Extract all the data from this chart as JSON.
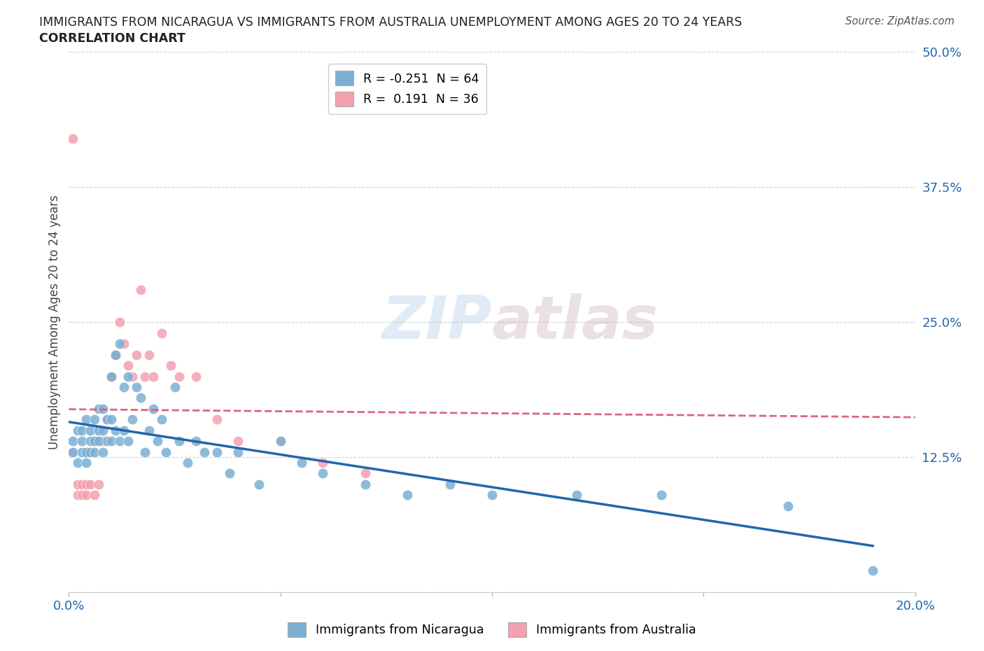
{
  "title_line1": "IMMIGRANTS FROM NICARAGUA VS IMMIGRANTS FROM AUSTRALIA UNEMPLOYMENT AMONG AGES 20 TO 24 YEARS",
  "title_line2": "CORRELATION CHART",
  "source_text": "Source: ZipAtlas.com",
  "ylabel": "Unemployment Among Ages 20 to 24 years",
  "xlim": [
    0.0,
    0.2
  ],
  "ylim": [
    0.0,
    0.5
  ],
  "xticks": [
    0.0,
    0.05,
    0.1,
    0.15,
    0.2
  ],
  "yticks": [
    0.0,
    0.125,
    0.25,
    0.375,
    0.5
  ],
  "xticklabels": [
    "0.0%",
    "",
    "",
    "",
    "20.0%"
  ],
  "yticklabels": [
    "",
    "12.5%",
    "25.0%",
    "37.5%",
    "50.0%"
  ],
  "nicaragua_color": "#7bafd4",
  "australia_color": "#f4a0b0",
  "nicaragua_line_color": "#2166ac",
  "australia_line_color": "#d9687a",
  "nicaragua_R": -0.251,
  "nicaragua_N": 64,
  "australia_R": 0.191,
  "australia_N": 36,
  "grid_color": "#cccccc",
  "background_color": "#ffffff",
  "watermark_zip": "ZIP",
  "watermark_atlas": "atlas",
  "legend_label_nicaragua": "Immigrants from Nicaragua",
  "legend_label_australia": "Immigrants from Australia",
  "nicaragua_x": [
    0.001,
    0.001,
    0.002,
    0.002,
    0.003,
    0.003,
    0.003,
    0.004,
    0.004,
    0.004,
    0.005,
    0.005,
    0.005,
    0.006,
    0.006,
    0.006,
    0.007,
    0.007,
    0.007,
    0.008,
    0.008,
    0.008,
    0.009,
    0.009,
    0.01,
    0.01,
    0.01,
    0.011,
    0.011,
    0.012,
    0.012,
    0.013,
    0.013,
    0.014,
    0.014,
    0.015,
    0.016,
    0.017,
    0.018,
    0.019,
    0.02,
    0.021,
    0.022,
    0.023,
    0.025,
    0.026,
    0.028,
    0.03,
    0.032,
    0.035,
    0.038,
    0.04,
    0.045,
    0.05,
    0.055,
    0.06,
    0.07,
    0.08,
    0.09,
    0.1,
    0.12,
    0.14,
    0.17,
    0.19
  ],
  "nicaragua_y": [
    0.13,
    0.14,
    0.12,
    0.15,
    0.13,
    0.14,
    0.15,
    0.12,
    0.13,
    0.16,
    0.13,
    0.14,
    0.15,
    0.13,
    0.14,
    0.16,
    0.14,
    0.15,
    0.17,
    0.13,
    0.15,
    0.17,
    0.14,
    0.16,
    0.14,
    0.16,
    0.2,
    0.15,
    0.22,
    0.14,
    0.23,
    0.15,
    0.19,
    0.14,
    0.2,
    0.16,
    0.19,
    0.18,
    0.13,
    0.15,
    0.17,
    0.14,
    0.16,
    0.13,
    0.19,
    0.14,
    0.12,
    0.14,
    0.13,
    0.13,
    0.11,
    0.13,
    0.1,
    0.14,
    0.12,
    0.11,
    0.1,
    0.09,
    0.1,
    0.09,
    0.09,
    0.09,
    0.08,
    0.02
  ],
  "australia_x": [
    0.001,
    0.001,
    0.002,
    0.002,
    0.003,
    0.003,
    0.004,
    0.004,
    0.005,
    0.005,
    0.006,
    0.006,
    0.007,
    0.007,
    0.008,
    0.009,
    0.01,
    0.011,
    0.012,
    0.013,
    0.014,
    0.015,
    0.016,
    0.017,
    0.018,
    0.019,
    0.02,
    0.022,
    0.024,
    0.026,
    0.03,
    0.035,
    0.04,
    0.05,
    0.06,
    0.07
  ],
  "australia_y": [
    0.42,
    0.13,
    0.1,
    0.09,
    0.1,
    0.09,
    0.1,
    0.09,
    0.13,
    0.1,
    0.14,
    0.09,
    0.15,
    0.1,
    0.14,
    0.16,
    0.2,
    0.22,
    0.25,
    0.23,
    0.21,
    0.2,
    0.22,
    0.28,
    0.2,
    0.22,
    0.2,
    0.24,
    0.21,
    0.2,
    0.2,
    0.16,
    0.14,
    0.14,
    0.12,
    0.11
  ]
}
